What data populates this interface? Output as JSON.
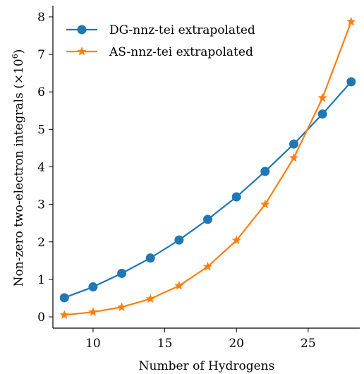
{
  "chart_data": {
    "type": "line",
    "xlabel": "Number of Hydrogens",
    "ylabel": "Non-zero two-electron integrals (×10⁶)",
    "ylabel_parts": {
      "main": "Non-zero two-electron integrals (×10",
      "exp": "6",
      "close": ")"
    },
    "xlim": [
      7.2,
      28.6
    ],
    "ylim": [
      -0.3,
      8.3
    ],
    "x_ticks": [
      10,
      15,
      20,
      25
    ],
    "y_ticks": [
      0,
      1,
      2,
      3,
      4,
      5,
      6,
      7,
      8
    ],
    "x_tick_labels": [
      "10",
      "15",
      "20",
      "25"
    ],
    "y_tick_labels": [
      "0",
      "1",
      "2",
      "3",
      "4",
      "5",
      "6",
      "7",
      "8"
    ],
    "grid": false,
    "legend_position": "top-left",
    "x": [
      8,
      10,
      12,
      14,
      16,
      18,
      20,
      22,
      24,
      26,
      28
    ],
    "series": [
      {
        "name": "DG-nnz-tei extrapolated",
        "color": "#1f77b4",
        "marker": "circle",
        "values": [
          0.51,
          0.8,
          1.16,
          1.57,
          2.05,
          2.6,
          3.2,
          3.88,
          4.61,
          5.41,
          6.27
        ]
      },
      {
        "name": "AS-nnz-tei extrapolated",
        "color": "#ff7f0e",
        "marker": "star",
        "values": [
          0.05,
          0.13,
          0.26,
          0.48,
          0.83,
          1.34,
          2.04,
          3.0,
          4.24,
          5.84,
          7.87
        ]
      }
    ]
  }
}
